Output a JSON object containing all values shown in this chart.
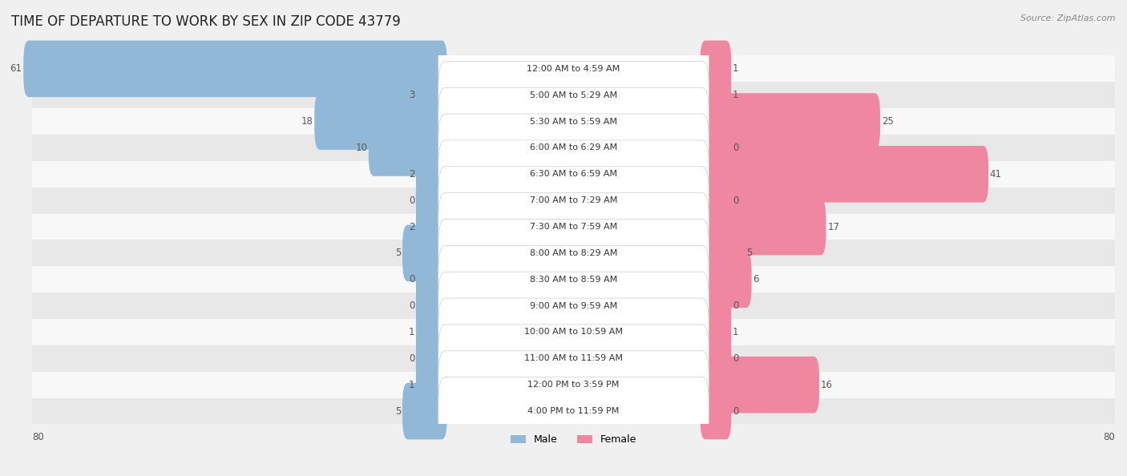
{
  "title": "TIME OF DEPARTURE TO WORK BY SEX IN ZIP CODE 43779",
  "source": "Source: ZipAtlas.com",
  "categories": [
    "12:00 AM to 4:59 AM",
    "5:00 AM to 5:29 AM",
    "5:30 AM to 5:59 AM",
    "6:00 AM to 6:29 AM",
    "6:30 AM to 6:59 AM",
    "7:00 AM to 7:29 AM",
    "7:30 AM to 7:59 AM",
    "8:00 AM to 8:29 AM",
    "8:30 AM to 8:59 AM",
    "9:00 AM to 9:59 AM",
    "10:00 AM to 10:59 AM",
    "11:00 AM to 11:59 AM",
    "12:00 PM to 3:59 PM",
    "4:00 PM to 11:59 PM"
  ],
  "male": [
    61,
    3,
    18,
    10,
    2,
    0,
    2,
    5,
    0,
    0,
    1,
    0,
    1,
    5
  ],
  "female": [
    1,
    1,
    25,
    0,
    41,
    0,
    17,
    5,
    6,
    0,
    1,
    0,
    16,
    0
  ],
  "male_color": "#92b8d8",
  "female_color": "#f087a0",
  "axis_limit": 80,
  "min_bar": 3,
  "background_color": "#f0f0f0",
  "row_bg_even": "#f8f8f8",
  "row_bg_odd": "#e8e8e8",
  "title_fontsize": 12,
  "cat_fontsize": 8,
  "val_fontsize": 8.5,
  "source_fontsize": 8,
  "label_box_color": "#ffffff",
  "label_text_color": "#333333",
  "val_text_color": "#555555"
}
